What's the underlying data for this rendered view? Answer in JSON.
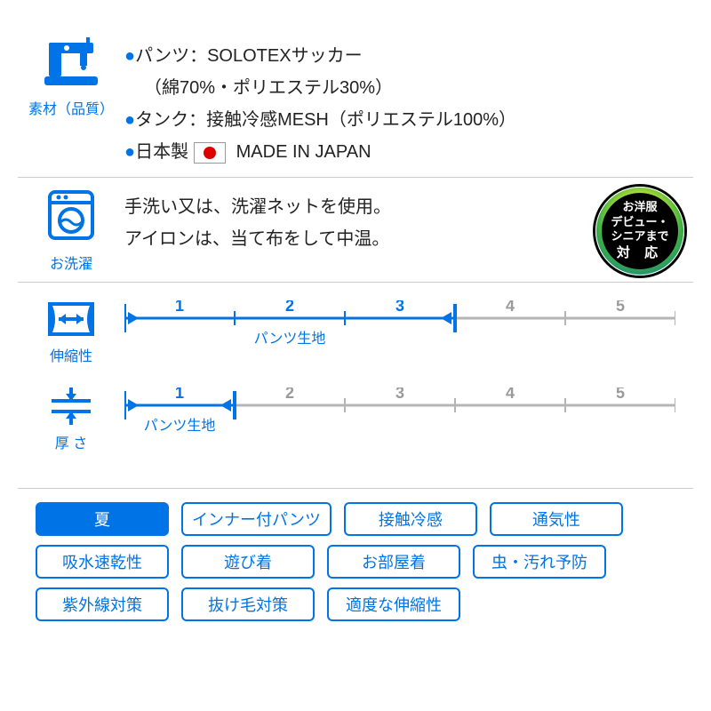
{
  "material": {
    "label": "素材（品質）",
    "lines": [
      {
        "bullet": true,
        "text": "パンツ：SOLOTEXサッカー"
      },
      {
        "bullet": false,
        "text": "（綿70%・ポリエステル30%）"
      },
      {
        "bullet": true,
        "text": "タンク：接触冷感MESH（ポリエステル100%）"
      },
      {
        "bullet": true,
        "text": "日本製",
        "flag": true,
        "after": "MADE IN JAPAN"
      }
    ]
  },
  "wash": {
    "label": "お洗濯",
    "lines": [
      "手洗い又は、洗濯ネットを使用。",
      "アイロンは、当て布をして中温。"
    ]
  },
  "badge": {
    "l1": "お洋服",
    "l2": "デビュー・",
    "l3": "シニアまで",
    "l4": "対 応"
  },
  "scales": {
    "items": [
      {
        "key": "stretch",
        "label": "伸縮性",
        "value": 3,
        "max": 5,
        "sub": "パンツ生地"
      },
      {
        "key": "thick",
        "label": "厚 さ",
        "value": 1,
        "max": 5,
        "sub": "パンツ生地"
      }
    ],
    "colors": {
      "active": "#0073e6",
      "inactive": "#b5b5b5",
      "text_inactive": "#9a9a9a"
    }
  },
  "tags": [
    {
      "text": "夏",
      "solid": true
    },
    {
      "text": "インナー付パンツ"
    },
    {
      "text": "接触冷感"
    },
    {
      "text": "通気性"
    },
    {
      "text": "吸水速乾性"
    },
    {
      "text": "遊び着"
    },
    {
      "text": "お部屋着"
    },
    {
      "text": "虫・汚れ予防"
    },
    {
      "text": "紫外線対策"
    },
    {
      "text": "抜け毛対策"
    },
    {
      "text": "適度な伸縮性"
    }
  ],
  "style": {
    "accent": "#0073e6",
    "text": "#222222"
  }
}
